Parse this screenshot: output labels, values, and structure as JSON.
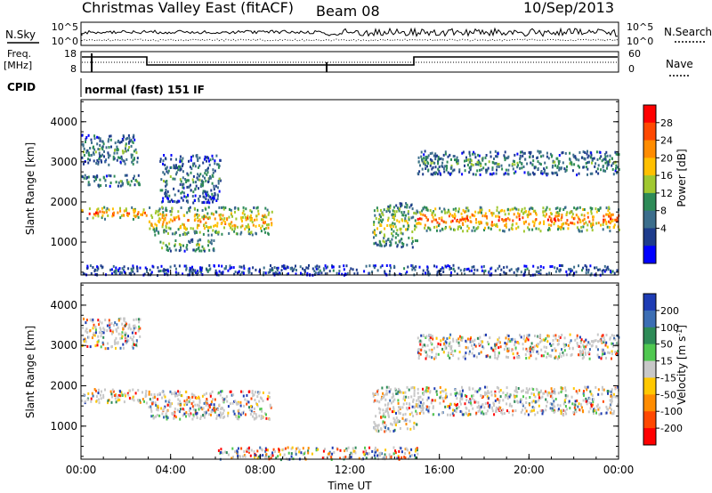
{
  "header": {
    "station": "Christmas Valley East (fitACF)",
    "beam": "Beam 08",
    "date": "10/Sep/2013"
  },
  "params": {
    "nsky_label": "N.Sky",
    "nsearch_label": "N.Search",
    "nsky_ticks": [
      "10^5",
      "10^0"
    ],
    "nsearch_ticks": [
      "10^5",
      "10^0"
    ],
    "freq_label": "Freq.",
    "freq_unit": "[MHz]",
    "freq_ticks": [
      "18",
      "8"
    ],
    "nave_label": "Nave",
    "nave_ticks": [
      "60",
      "0"
    ],
    "cpid_label": "CPID",
    "cpid_value": "normal (fast) 151 IF"
  },
  "chart_data": [
    {
      "type": "heatmap",
      "name": "power",
      "ylabel": "Slant Range [km]",
      "y_ticks": [
        1000,
        2000,
        3000,
        4000
      ],
      "ylim": [
        180,
        4550
      ],
      "x_ticks": [
        "00:00",
        "04:00",
        "08:00",
        "12:00",
        "16:00",
        "20:00",
        "00:00"
      ],
      "xlim_hours": [
        0,
        24
      ],
      "colorbar": {
        "label": "Power [dB]",
        "ticks": [
          "28",
          "24",
          "20",
          "16",
          "12",
          "8",
          "4"
        ],
        "colors": [
          "#ff0000",
          "#ff4800",
          "#ff8c00",
          "#ffc000",
          "#a0c830",
          "#2e8b57",
          "#3c6e8c",
          "#1e3c8c",
          "#0000ff"
        ]
      },
      "echo_bands": [
        {
          "start_h": 0.0,
          "end_h": 2.9,
          "range_km": [
            1600,
            1900
          ],
          "level": 0.85
        },
        {
          "start_h": 0.0,
          "end_h": 2.6,
          "range_km": [
            2400,
            2700
          ],
          "level": 0.4
        },
        {
          "start_h": 0.0,
          "end_h": 2.5,
          "range_km": [
            2950,
            3700
          ],
          "level": 0.35
        },
        {
          "start_h": 3.0,
          "end_h": 8.5,
          "range_km": [
            1200,
            1900
          ],
          "level": 0.75
        },
        {
          "start_h": 3.5,
          "end_h": 6.2,
          "range_km": [
            2000,
            3200
          ],
          "level": 0.3
        },
        {
          "start_h": 3.5,
          "end_h": 6.0,
          "range_km": [
            800,
            1100
          ],
          "level": 0.5
        },
        {
          "start_h": 13.0,
          "end_h": 15.0,
          "range_km": [
            900,
            2000
          ],
          "level": 0.55
        },
        {
          "start_h": 15.0,
          "end_h": 24.0,
          "range_km": [
            1300,
            1900
          ],
          "level": 0.85
        },
        {
          "start_h": 15.0,
          "end_h": 24.0,
          "range_km": [
            2700,
            3300
          ],
          "level": 0.35
        },
        {
          "start_h": 0.0,
          "end_h": 24.0,
          "range_km": [
            200,
            450
          ],
          "level": 0.2
        }
      ]
    },
    {
      "type": "heatmap",
      "name": "velocity",
      "ylabel": "Slant Range [km]",
      "y_ticks": [
        1000,
        2000,
        3000,
        4000
      ],
      "ylim": [
        180,
        4550
      ],
      "x_ticks": [
        "00:00",
        "04:00",
        "08:00",
        "12:00",
        "16:00",
        "20:00",
        "00:00"
      ],
      "xlim_hours": [
        0,
        24
      ],
      "xlabel": "Time UT",
      "colorbar": {
        "label": "Velocity [m s",
        "label_sup": "-1",
        "label_end": "]",
        "ticks": [
          "200",
          "100",
          "50",
          "15",
          "-15",
          "-50",
          "-100",
          "-200"
        ],
        "colors": [
          "#1e3cb4",
          "#3c6eb4",
          "#2e8b57",
          "#50c850",
          "#c8c8c8",
          "#ffc800",
          "#ff8c00",
          "#ff4800",
          "#ff0000"
        ]
      },
      "echo_bands": [
        {
          "start_h": 0.0,
          "end_h": 2.9,
          "range_km": [
            1600,
            1950
          ],
          "level": 0.5
        },
        {
          "start_h": 0.0,
          "end_h": 2.6,
          "range_km": [
            2950,
            3700
          ],
          "level": 0.5
        },
        {
          "start_h": 3.0,
          "end_h": 8.5,
          "range_km": [
            1200,
            1900
          ],
          "level": 0.5
        },
        {
          "start_h": 5.0,
          "end_h": 6.0,
          "range_km": [
            1300,
            1600
          ],
          "level": 0.25
        },
        {
          "start_h": 13.0,
          "end_h": 15.0,
          "range_km": [
            900,
            2000
          ],
          "level": 0.65
        },
        {
          "start_h": 15.0,
          "end_h": 24.0,
          "range_km": [
            1300,
            2000
          ],
          "level": 0.5
        },
        {
          "start_h": 15.0,
          "end_h": 24.0,
          "range_km": [
            2700,
            3300
          ],
          "level": 0.5
        },
        {
          "start_h": 6.0,
          "end_h": 15.0,
          "range_km": [
            200,
            500
          ],
          "level": 0.2
        }
      ]
    }
  ]
}
